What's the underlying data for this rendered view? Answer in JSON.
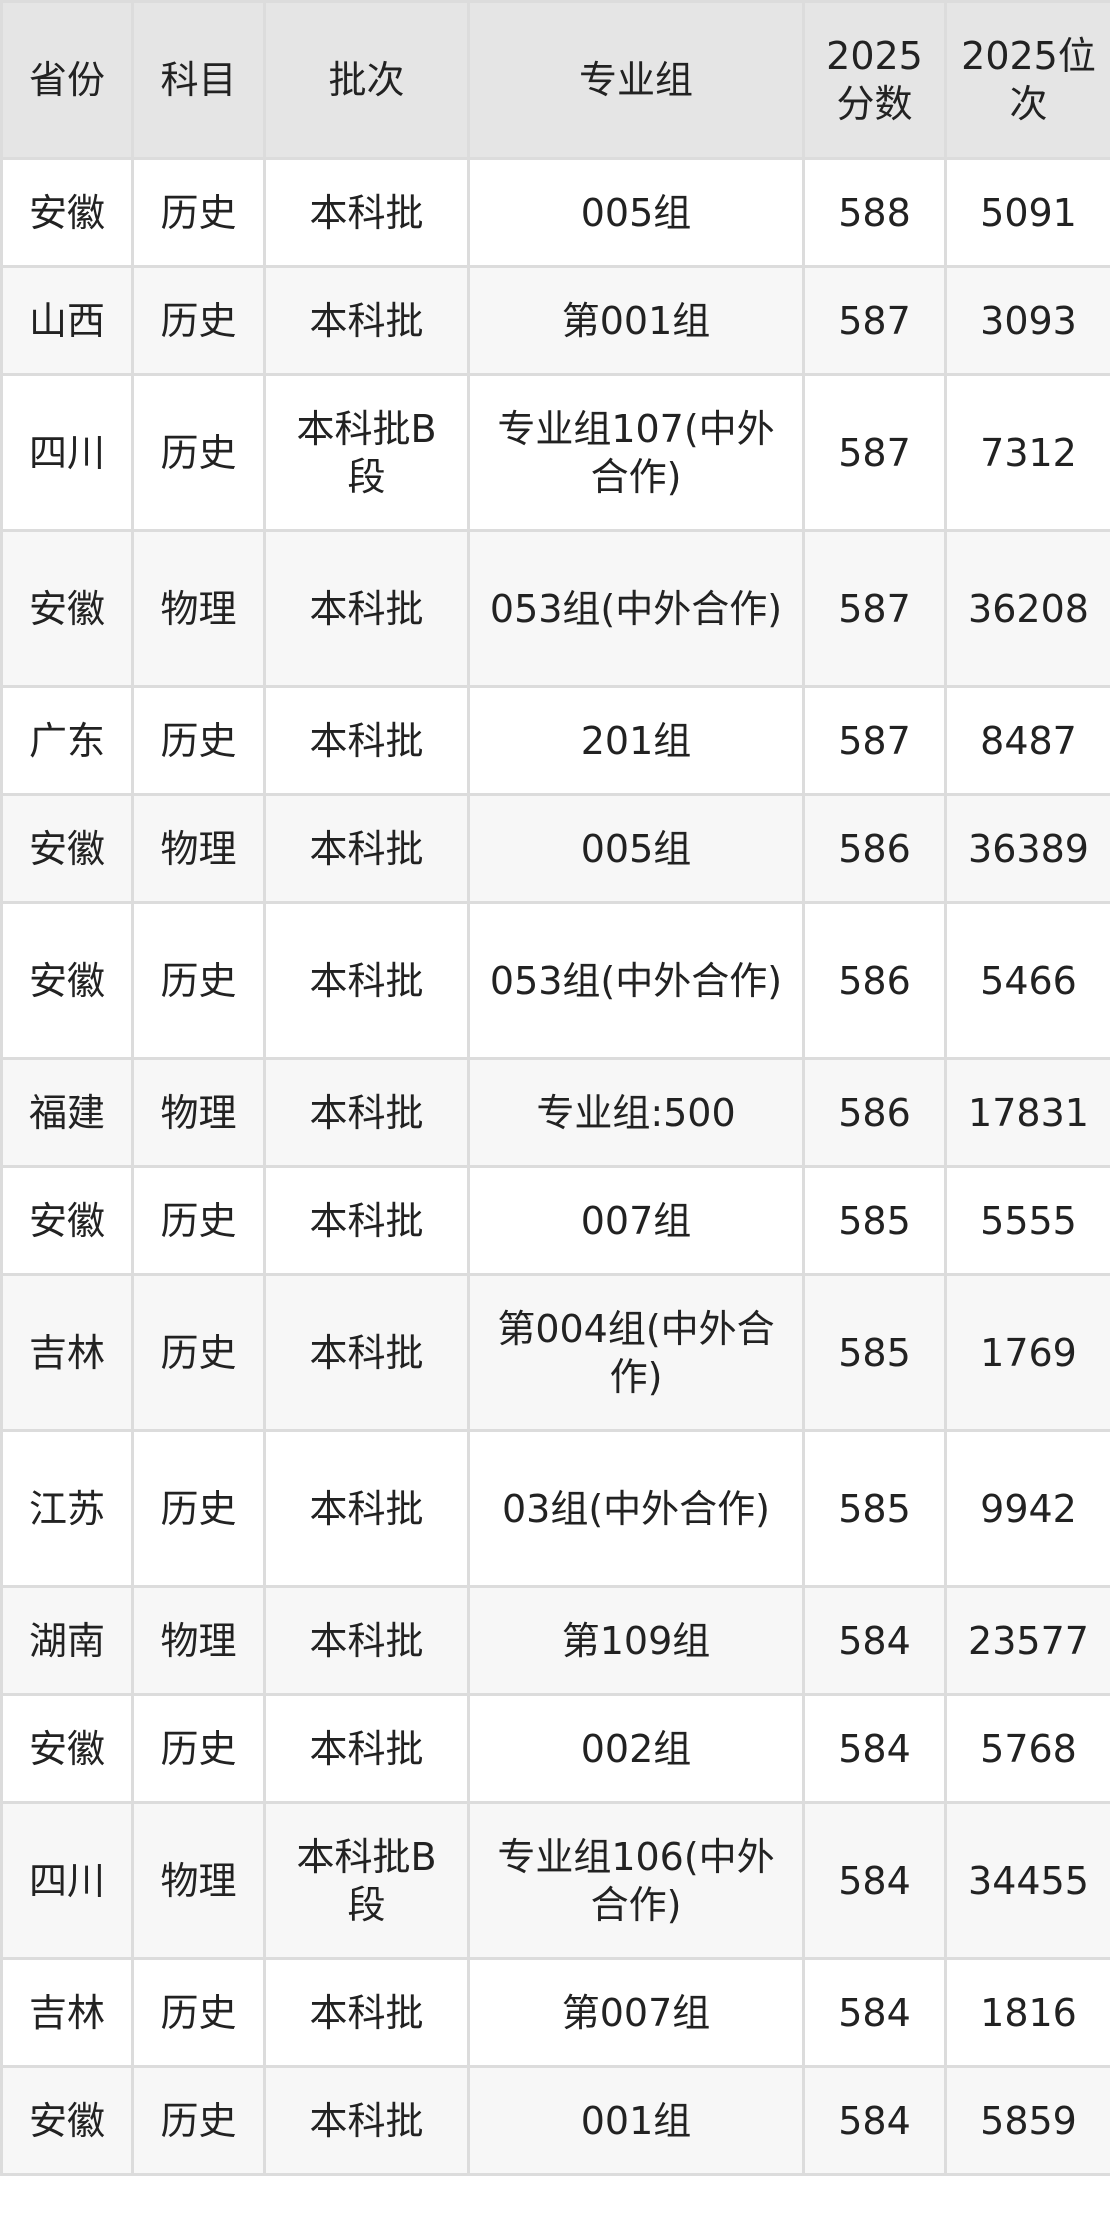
{
  "headers": [
    "省份",
    "科目",
    "批次",
    "专业组",
    "2025分数",
    "2025位次"
  ],
  "rows": [
    {
      "province": "安徽",
      "subject": "历史",
      "batch": "本科批",
      "group": "005组",
      "score": "588",
      "rank": "5091"
    },
    {
      "province": "山西",
      "subject": "历史",
      "batch": "本科批",
      "group": "第001组",
      "score": "587",
      "rank": "3093"
    },
    {
      "province": "四川",
      "subject": "历史",
      "batch": "本科批B段",
      "group": "专业组107(中外合作)",
      "score": "587",
      "rank": "7312"
    },
    {
      "province": "安徽",
      "subject": "物理",
      "batch": "本科批",
      "group": "053组(中外合作)",
      "score": "587",
      "rank": "36208"
    },
    {
      "province": "广东",
      "subject": "历史",
      "batch": "本科批",
      "group": "201组",
      "score": "587",
      "rank": "8487"
    },
    {
      "province": "安徽",
      "subject": "物理",
      "batch": "本科批",
      "group": "005组",
      "score": "586",
      "rank": "36389"
    },
    {
      "province": "安徽",
      "subject": "历史",
      "batch": "本科批",
      "group": "053组(中外合作)",
      "score": "586",
      "rank": "5466"
    },
    {
      "province": "福建",
      "subject": "物理",
      "batch": "本科批",
      "group": "专业组:500",
      "score": "586",
      "rank": "17831"
    },
    {
      "province": "安徽",
      "subject": "历史",
      "batch": "本科批",
      "group": "007组",
      "score": "585",
      "rank": "5555"
    },
    {
      "province": "吉林",
      "subject": "历史",
      "batch": "本科批",
      "group": "第004组(中外合作)",
      "score": "585",
      "rank": "1769"
    },
    {
      "province": "江苏",
      "subject": "历史",
      "batch": "本科批",
      "group": "03组(中外合作)",
      "score": "585",
      "rank": "9942"
    },
    {
      "province": "湖南",
      "subject": "物理",
      "batch": "本科批",
      "group": "第109组",
      "score": "584",
      "rank": "23577"
    },
    {
      "province": "安徽",
      "subject": "历史",
      "batch": "本科批",
      "group": "002组",
      "score": "584",
      "rank": "5768"
    },
    {
      "province": "四川",
      "subject": "物理",
      "batch": "本科批B段",
      "group": "专业组106(中外合作)",
      "score": "584",
      "rank": "34455"
    },
    {
      "province": "吉林",
      "subject": "历史",
      "batch": "本科批",
      "group": "第007组",
      "score": "584",
      "rank": "1816"
    },
    {
      "province": "安徽",
      "subject": "历史",
      "batch": "本科批",
      "group": "001组",
      "score": "584",
      "rank": "5859"
    }
  ]
}
